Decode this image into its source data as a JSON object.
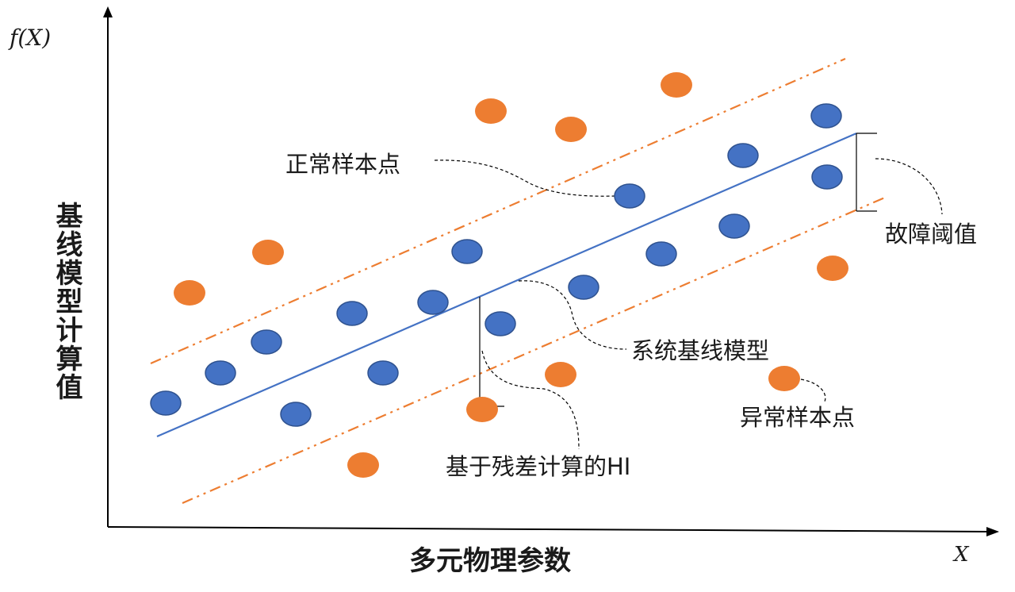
{
  "axes": {
    "y_variable": "f(X)",
    "x_variable": "X",
    "y_title": "基线模型计算值",
    "x_title": "多元物理参数"
  },
  "annotations": {
    "normal_samples": "正常样本点",
    "fault_threshold": "故障阈值",
    "baseline_model": "系统基线模型",
    "abnormal_samples": "异常样本点",
    "residual_hi": "基于残差计算的HI"
  },
  "colors": {
    "normal": "#4472C4",
    "normal_stroke": "#2F528F",
    "abnormal": "#ED7D31",
    "baseline": "#4472C4",
    "threshold": "#ED7D31",
    "axis": "#000000"
  }
}
